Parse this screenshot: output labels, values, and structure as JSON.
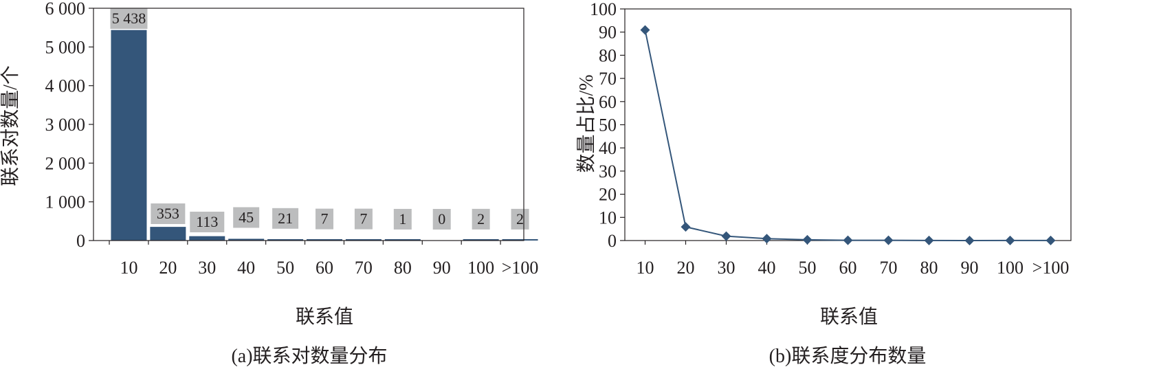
{
  "chart_data": [
    {
      "type": "bar",
      "caption": "(a)联系对数量分布",
      "xlabel": "联系值",
      "ylabel": "联系对数量/个",
      "categories": [
        "10",
        "20",
        "30",
        "40",
        "50",
        "60",
        "70",
        "80",
        "90",
        "100",
        ">100"
      ],
      "values": [
        5438,
        353,
        113,
        45,
        21,
        7,
        7,
        1,
        0,
        2,
        2
      ],
      "data_labels": [
        "5 438",
        "353",
        "113",
        "45",
        "21",
        "7",
        "7",
        "1",
        "0",
        "2",
        "2"
      ],
      "ylim": [
        0,
        6000
      ],
      "yticks": [
        0,
        1000,
        2000,
        3000,
        4000,
        5000,
        6000
      ],
      "ytick_labels": [
        "0",
        "1 000",
        "2 000",
        "3 000",
        "4 000",
        "5 000",
        "6 000"
      ],
      "bar_color": "#34567a",
      "label_bg": "#bcbdbe"
    },
    {
      "type": "line",
      "caption": "(b)联系度分布数量",
      "xlabel": "联系值",
      "ylabel": "数量占比/%",
      "categories": [
        "10",
        "20",
        "30",
        "40",
        "50",
        "60",
        "70",
        "80",
        "90",
        "100",
        ">100"
      ],
      "values": [
        90.9,
        5.9,
        1.9,
        0.8,
        0.35,
        0.12,
        0.12,
        0.02,
        0,
        0.03,
        0.03
      ],
      "ylim": [
        0,
        100
      ],
      "yticks": [
        0,
        10,
        20,
        30,
        40,
        50,
        60,
        70,
        80,
        90,
        100
      ],
      "ytick_labels": [
        "0",
        "10",
        "20",
        "30",
        "40",
        "50",
        "60",
        "70",
        "80",
        "90",
        "100"
      ],
      "line_color": "#34567a",
      "marker": "diamond"
    }
  ]
}
